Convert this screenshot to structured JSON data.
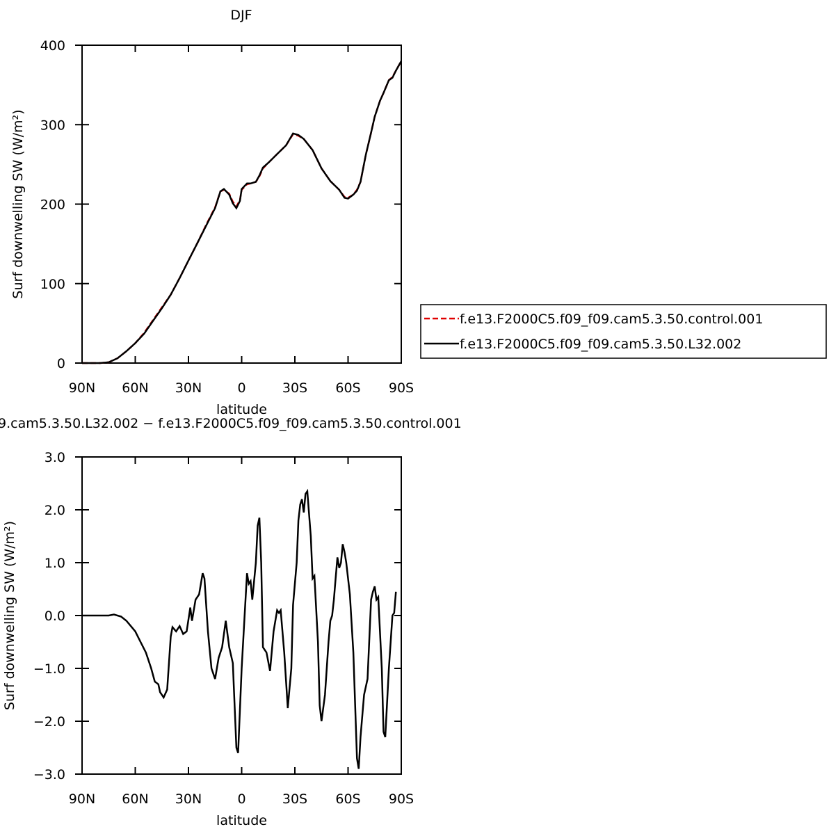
{
  "chart_data": [
    {
      "type": "line",
      "title": "DJF",
      "xlabel": "latitude",
      "ylabel": "Surf downwelling SW (W/m²)",
      "xlim": [
        90,
        -90
      ],
      "xticks": [
        {
          "value": 90,
          "label": "90N"
        },
        {
          "value": 60,
          "label": "60N"
        },
        {
          "value": 30,
          "label": "30N"
        },
        0,
        {
          "value": -30,
          "label": "30S"
        },
        {
          "value": -60,
          "label": "60S"
        },
        {
          "value": -90,
          "label": "90S"
        }
      ],
      "ylim": [
        0,
        400
      ],
      "yticks": [
        0,
        100,
        200,
        300,
        400
      ],
      "legend": "right",
      "x": [
        90,
        85,
        80,
        75,
        70,
        65,
        60,
        55,
        50,
        45,
        40,
        35,
        30,
        25,
        20,
        15,
        12,
        10,
        7,
        5,
        3,
        1,
        0,
        -3,
        -5,
        -8,
        -10,
        -12,
        -15,
        -20,
        -25,
        -29,
        -32,
        -35,
        -40,
        -45,
        -50,
        -55,
        -58,
        -60,
        -63,
        -65,
        -67,
        -70,
        -73,
        -75,
        -78,
        -80,
        -83,
        -85,
        -87,
        -90
      ],
      "series": [
        {
          "name": "f.e13.F2000C5.f09_f09.cam5.3.50.control.001",
          "color": "#e00000",
          "style": "dashed",
          "values": [
            0,
            0,
            0,
            1,
            6,
            15,
            25,
            38,
            54,
            70,
            86,
            107,
            129,
            151,
            174,
            196,
            216,
            218,
            213,
            203,
            197,
            205,
            218,
            225,
            226,
            228,
            235,
            245,
            252,
            263,
            274,
            288,
            286,
            282,
            268,
            245,
            229,
            218,
            209,
            208,
            212,
            218,
            228,
            262,
            290,
            310,
            330,
            340,
            356,
            360,
            368,
            380
          ]
        },
        {
          "name": "f.e13.F2000C5.f09_f09.cam5.3.50.L32.002",
          "color": "#000000",
          "style": "solid",
          "values": [
            0,
            0,
            0,
            1,
            6,
            15,
            25,
            37,
            53,
            69,
            86,
            107,
            129,
            151,
            173,
            195,
            216,
            219,
            212,
            201,
            195,
            204,
            219,
            226,
            226,
            228,
            236,
            246,
            252,
            263,
            274,
            289,
            287,
            282,
            268,
            245,
            229,
            218,
            208,
            207,
            212,
            217,
            228,
            262,
            290,
            310,
            330,
            340,
            356,
            359,
            368,
            380
          ]
        }
      ]
    },
    {
      "type": "line",
      "title": "9.cam5.3.50.L32.002 − f.e13.F2000C5.f09_f09.cam5.3.50.control.001",
      "xlabel": "latitude",
      "ylabel": "Surf downwelling SW (W/m²)",
      "xlim": [
        90,
        -90
      ],
      "xticks": [
        {
          "value": 90,
          "label": "90N"
        },
        {
          "value": 60,
          "label": "60N"
        },
        {
          "value": 30,
          "label": "30N"
        },
        0,
        {
          "value": -30,
          "label": "30S"
        },
        {
          "value": -60,
          "label": "60S"
        },
        {
          "value": -90,
          "label": "90S"
        }
      ],
      "ylim": [
        -3,
        3
      ],
      "yticks": [
        {
          "value": -3,
          "label": "−3.0"
        },
        {
          "value": -2,
          "label": "−2.0"
        },
        {
          "value": -1,
          "label": "−1.0"
        },
        {
          "value": 0,
          "label": "0.0"
        },
        {
          "value": 1,
          "label": "1.0"
        },
        {
          "value": 2,
          "label": "2.0"
        },
        {
          "value": 3,
          "label": "3.0"
        }
      ],
      "x": [
        90,
        75,
        72,
        68,
        65,
        62,
        60,
        57,
        54,
        51,
        49,
        47,
        46,
        44,
        42,
        40,
        39,
        37,
        35,
        33,
        31,
        29,
        28,
        26,
        24,
        22,
        21,
        19,
        17,
        15,
        13,
        11,
        9,
        7,
        5,
        3,
        2,
        0,
        -2,
        -3,
        -4,
        -5,
        -6,
        -8,
        -9,
        -10,
        -11,
        -12,
        -14,
        -16,
        -18,
        -20,
        -21,
        -22,
        -24,
        -26,
        -28,
        -29,
        -31,
        -32,
        -33,
        -34,
        -35,
        -36,
        -37,
        -39,
        -40,
        -41,
        -43,
        -44,
        -45,
        -47,
        -49,
        -50,
        -51,
        -52,
        -53,
        -54,
        -55,
        -56,
        -57,
        -58,
        -59,
        -61,
        -63,
        -65,
        -66,
        -67,
        -69,
        -71,
        -73,
        -74,
        -75,
        -76,
        -77,
        -79,
        -80,
        -81,
        -83,
        -85,
        -86,
        -87
      ],
      "series": [
        {
          "color": "#000000",
          "style": "solid",
          "values": [
            0,
            0,
            0.02,
            -0.02,
            -0.1,
            -0.22,
            -0.3,
            -0.5,
            -0.7,
            -1.0,
            -1.25,
            -1.3,
            -1.45,
            -1.55,
            -1.4,
            -0.4,
            -0.22,
            -0.3,
            -0.2,
            -0.35,
            -0.3,
            0.15,
            -0.1,
            0.3,
            0.4,
            0.8,
            0.7,
            -0.3,
            -1.0,
            -1.2,
            -0.8,
            -0.6,
            -0.1,
            -0.6,
            -0.9,
            -2.5,
            -2.6,
            -1.0,
            0.2,
            0.8,
            0.6,
            0.65,
            0.3,
            1.0,
            1.7,
            1.85,
            1.0,
            -0.6,
            -0.7,
            -1.05,
            -0.3,
            0.1,
            0.05,
            0.1,
            -0.7,
            -1.75,
            -1.0,
            0.2,
            1.0,
            1.8,
            2.1,
            2.2,
            1.95,
            2.3,
            2.35,
            1.5,
            0.7,
            0.75,
            -0.5,
            -1.7,
            -2.0,
            -1.5,
            -0.5,
            -0.1,
            0.0,
            0.3,
            0.7,
            1.1,
            0.9,
            1.0,
            1.35,
            1.2,
            1.0,
            0.4,
            -0.7,
            -2.7,
            -2.9,
            -2.3,
            -1.5,
            -1.2,
            0.3,
            0.45,
            0.55,
            0.3,
            0.35,
            -1.0,
            -2.2,
            -2.3,
            -1.0,
            0.0,
            0.05,
            0.45
          ]
        }
      ]
    }
  ]
}
